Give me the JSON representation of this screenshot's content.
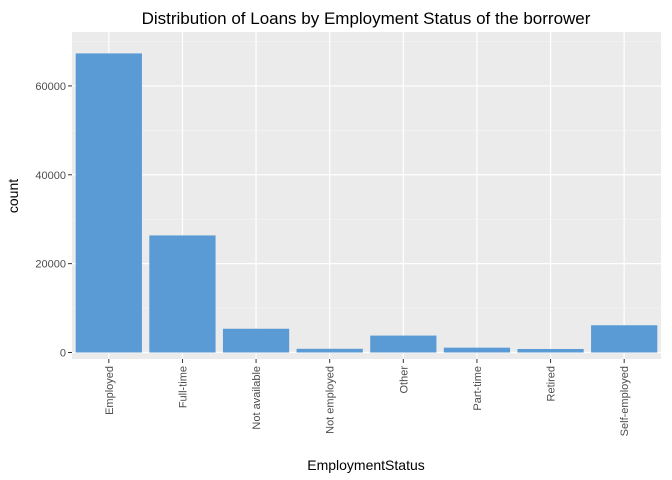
{
  "chart_data": {
    "type": "bar",
    "title": "Distribution of Loans by Employment Status of the borrower",
    "xlabel": "EmploymentStatus",
    "ylabel": "count",
    "categories": [
      "Employed",
      "Full-time",
      "Not available",
      "Not employed",
      "Other",
      "Part-time",
      "Retired",
      "Self-employed"
    ],
    "values": [
      67322,
      26355,
      5347,
      835,
      3806,
      1088,
      795,
      6134
    ],
    "ylim": [
      0,
      70000
    ],
    "yticks": [
      0,
      20000,
      40000,
      60000
    ],
    "ytick_labels": [
      "0",
      "20000",
      "40000",
      "60000"
    ],
    "grid": true,
    "colors": {
      "bar": "#5b9bd5",
      "panel": "#ebebeb",
      "grid_major": "#ffffff",
      "grid_minor": "#f5f5f5"
    }
  }
}
